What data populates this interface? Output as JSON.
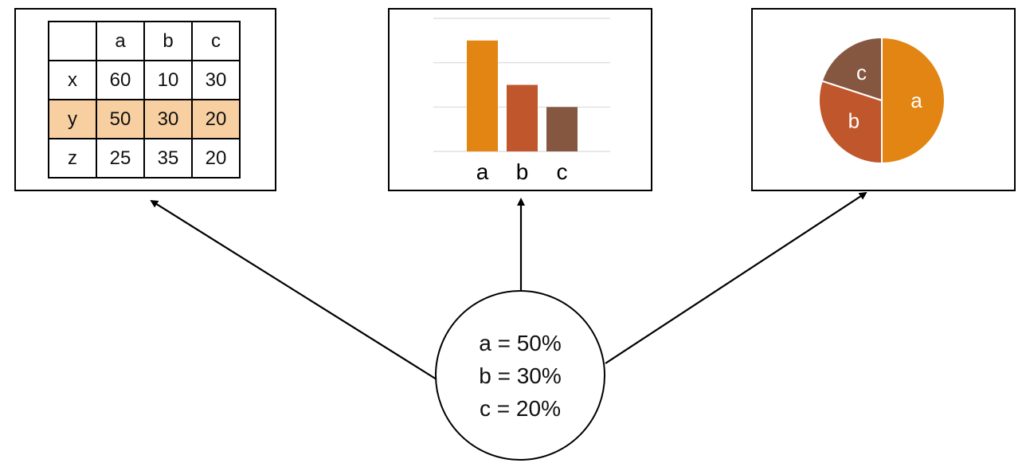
{
  "table": {
    "header": [
      "",
      "a",
      "b",
      "c"
    ],
    "rows": [
      {
        "label": "x",
        "values": [
          "60",
          "10",
          "30"
        ]
      },
      {
        "label": "y",
        "values": [
          "50",
          "30",
          "20"
        ],
        "highlighted": true
      },
      {
        "label": "z",
        "values": [
          "25",
          "35",
          "20"
        ]
      }
    ],
    "highlight_color": "#f7cfa1"
  },
  "chart_data": [
    {
      "type": "bar",
      "categories": [
        "a",
        "b",
        "c"
      ],
      "values": [
        50,
        30,
        20
      ],
      "colors": [
        "#e38512",
        "#c0562b",
        "#865740"
      ],
      "grid": true,
      "ylim": [
        0,
        60
      ]
    },
    {
      "type": "pie",
      "labels": [
        "a",
        "b",
        "c"
      ],
      "values": [
        50,
        30,
        20
      ],
      "colors": [
        "#e38512",
        "#c0562b",
        "#865740"
      ]
    }
  ],
  "summary": {
    "lines": [
      "a = 50%",
      "b = 30%",
      "c = 20%"
    ]
  }
}
